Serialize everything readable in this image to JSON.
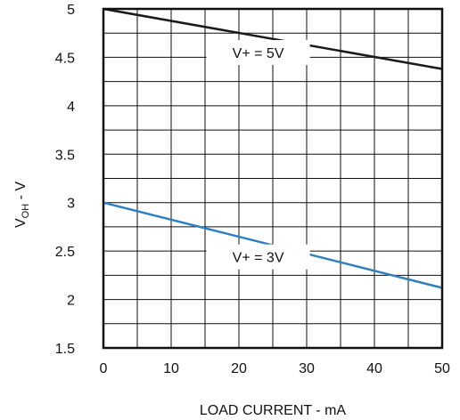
{
  "chart_data": {
    "type": "line",
    "xlabel": "LOAD CURRENT - mA",
    "ylabel_main": "V",
    "ylabel_sub": "OH",
    "ylabel_suffix": " - V",
    "xlim": [
      0,
      50
    ],
    "ylim": [
      1.5,
      5
    ],
    "x_ticks": [
      0,
      10,
      20,
      30,
      40,
      50
    ],
    "x_tick_labels": [
      "0",
      "10",
      "20",
      "30",
      "40",
      "50"
    ],
    "y_ticks": [
      1.5,
      2,
      2.5,
      3,
      3.5,
      4,
      4.5,
      5
    ],
    "y_tick_labels": [
      "1.5",
      "2",
      "2.5",
      "3",
      "3.5",
      "4",
      "4.5",
      "5"
    ],
    "grid": true,
    "grid_x_step": 5,
    "grid_y_step": 0.25,
    "series": [
      {
        "x": [
          0,
          50
        ],
        "y": [
          5.0,
          4.38
        ],
        "color": "#1a1a1a"
      },
      {
        "x": [
          0,
          50
        ],
        "y": [
          3.0,
          2.12
        ],
        "color": "#2f7fc1"
      }
    ],
    "annotations": [
      {
        "text": "V+ = 5V",
        "x": 16,
        "y": 4.55
      },
      {
        "text": "V+ = 3V",
        "x": 16,
        "y": 2.44
      }
    ]
  }
}
